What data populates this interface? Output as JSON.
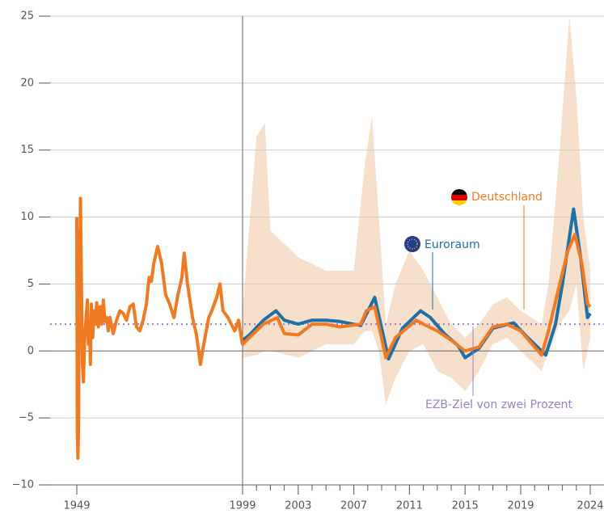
{
  "chart_data": {
    "type": "line",
    "xlim": [
      1949,
      2024
    ],
    "vline": 1999,
    "xticks": [
      1949,
      1999,
      2003,
      2007,
      2011,
      2015,
      2019,
      2024
    ],
    "xminorticks": [
      2000,
      2001,
      2002,
      2004,
      2005,
      2006,
      2008,
      2009,
      2010,
      2012,
      2013,
      2014,
      2016,
      2017,
      2018,
      2020,
      2021,
      2022,
      2023
    ],
    "ylim": [
      -10,
      25
    ],
    "yticks": [
      {
        "value": -10,
        "label": "−10"
      },
      {
        "value": -5,
        "label": "−5"
      },
      0,
      5,
      10,
      15,
      20,
      25
    ],
    "grid": true,
    "band": {
      "color": "#f6dfcb",
      "x": [
        1999,
        2000,
        2000.6,
        2001,
        2003,
        2005,
        2007,
        2007.8,
        2008.3,
        2008.8,
        2009.3,
        2010,
        2011,
        2012,
        2013,
        2014,
        2015,
        2016,
        2017,
        2018,
        2019,
        2020.5,
        2021,
        2021.8,
        2022.5,
        2023,
        2023.5,
        2024
      ],
      "lower": [
        -0.5,
        -0.3,
        0,
        0,
        -0.5,
        0.5,
        0.5,
        1.5,
        1.5,
        0,
        -4,
        -2,
        0,
        0.5,
        -1.5,
        -2,
        -3,
        -1.5,
        0.5,
        1,
        0,
        -1.5,
        0,
        2,
        3,
        5,
        -1.5,
        1
      ],
      "upper": [
        3,
        16,
        17,
        9,
        7,
        6,
        6,
        14,
        17.5,
        10,
        2,
        5,
        7.5,
        6,
        4,
        2,
        1,
        2,
        3.5,
        4,
        3,
        2,
        5,
        15,
        25,
        19,
        10,
        6
      ]
    },
    "target": {
      "value": 2,
      "label": "EZB-Ziel von zwei Prozent",
      "color": "#9b7fc8"
    },
    "series": [
      {
        "name": "Euroraum",
        "color": "#1f6fa8",
        "x": [
          1999,
          1999.5,
          2000.5,
          2001.4,
          2002,
          2003,
          2004,
          2005,
          2006,
          2007.5,
          2008.5,
          2009.5,
          2010.5,
          2011.8,
          2012.5,
          2013.5,
          2014.5,
          2015,
          2016,
          2017,
          2018.5,
          2019.5,
          2020.8,
          2021.5,
          2022,
          2022.8,
          2023.3,
          2023.8,
          2024
        ],
        "values": [
          0.8,
          1.2,
          2.3,
          3,
          2.3,
          2,
          2.3,
          2.3,
          2.2,
          1.9,
          4,
          -0.6,
          1.7,
          3,
          2.5,
          1.3,
          0.4,
          -0.5,
          0.2,
          1.7,
          2.1,
          1,
          -0.3,
          2,
          5,
          10.6,
          7,
          2.5,
          2.8
        ]
      },
      {
        "name": "Deutschland",
        "color": "#f07a22",
        "x": [
          1949,
          1949.15,
          1949.35,
          1949.55,
          1949.75,
          1949.9,
          1950.1,
          1950.4,
          1950.7,
          1951,
          1951.4,
          1951.8,
          1952.2,
          1952.5,
          1952.8,
          1953.1,
          1953.4,
          1953.8,
          1954.2,
          1954.6,
          1955,
          1955.5,
          1956,
          1956.5,
          1957,
          1957.5,
          1958,
          1958.5,
          1959,
          1960,
          1961,
          1962,
          1963,
          1964,
          1965,
          1966,
          1967,
          1968,
          1969,
          1970,
          1970.8,
          1971.5,
          1972.2,
          1973.4,
          1974.6,
          1975.8,
          1977,
          1978.3,
          1979.5,
          1980.7,
          1981.4,
          1982.4,
          1983.9,
          1985.1,
          1986.3,
          1987.3,
          1988.8,
          1989.7,
          1991.2,
          1992.2,
          1993.1,
          1994.6,
          1996.6,
          1997.8,
          1998.6,
          1999,
          2000.5,
          2001.5,
          2002,
          2003,
          2004,
          2005,
          2006,
          2007.5,
          2007.9,
          2008.5,
          2009.3,
          2010,
          2011.5,
          2012,
          2013,
          2014,
          2015,
          2016,
          2017,
          2018,
          2019,
          2020.5,
          2021,
          2021.8,
          2022.4,
          2022.9,
          2023.4,
          2023.8,
          2024
        ],
        "values": [
          10,
          -6,
          -8,
          -5,
          9,
          2,
          11.4,
          5,
          -1,
          -2.3,
          1,
          2.5,
          3.8,
          0.5,
          2,
          -1,
          3.5,
          1,
          3,
          2,
          3.6,
          1.8,
          3.3,
          2,
          3.8,
          2.2,
          2.5,
          1.5,
          2.5,
          1.3,
          2.3,
          3,
          2.8,
          2.3,
          3.3,
          3.5,
          1.8,
          1.5,
          2.3,
          3.5,
          5.5,
          5.2,
          6.5,
          7.8,
          6.5,
          4.2,
          3.5,
          2.5,
          4.2,
          5.5,
          7.3,
          5,
          2.5,
          1.2,
          -1,
          0.5,
          2.5,
          3,
          4,
          5,
          3,
          2.5,
          1.5,
          2.3,
          1,
          0.5,
          2,
          2.5,
          1.3,
          1.2,
          2,
          2,
          1.8,
          2,
          3,
          3.3,
          -0.5,
          1,
          2.3,
          2,
          1.5,
          0.8,
          0,
          0.3,
          1.8,
          2,
          1.5,
          -0.3,
          1.5,
          5,
          7.5,
          8.7,
          6.5,
          3.5,
          3.3
        ]
      }
    ]
  }
}
